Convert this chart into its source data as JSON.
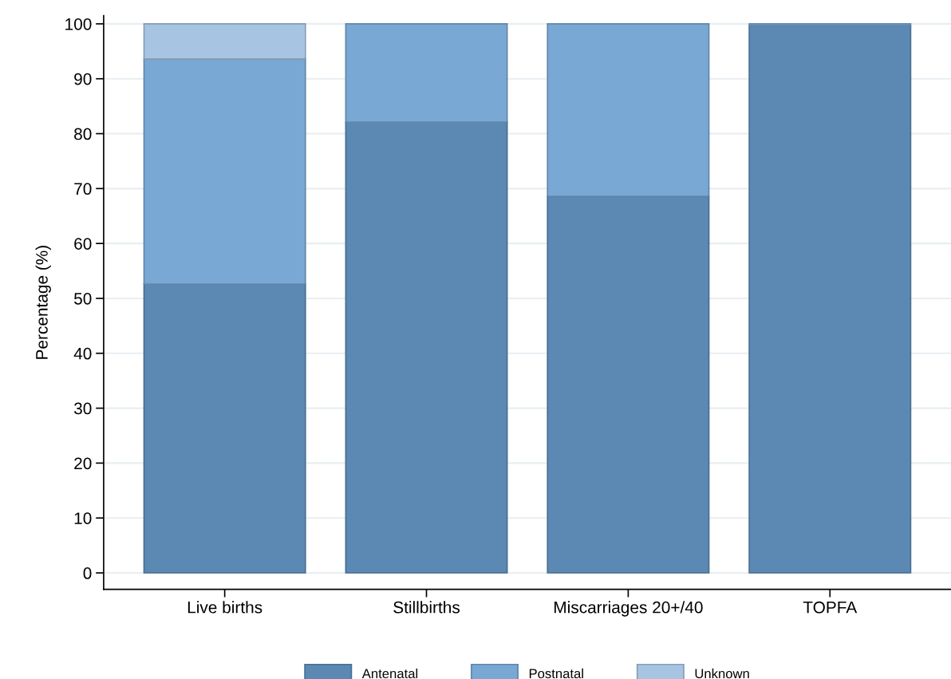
{
  "chart_data": {
    "type": "bar",
    "stacked": true,
    "ylabel": "Percentage (%)",
    "categories": [
      "Live births",
      "Stillbirths",
      "Miscarriages 20+/40",
      "TOPFA"
    ],
    "series": [
      {
        "name": "Antenatal",
        "color": "#5b89b4",
        "values": [
          52.6,
          82.1,
          68.6,
          99.7
        ]
      },
      {
        "name": "Postnatal",
        "color": "#79a8d4",
        "values": [
          41.0,
          17.9,
          31.4,
          0.3
        ]
      },
      {
        "name": "Unknown",
        "color": "#a7c5e2",
        "values": [
          6.4,
          0,
          0,
          0
        ]
      }
    ],
    "ylim": [
      -3,
      101.5
    ],
    "yticks": [
      0,
      10,
      20,
      30,
      40,
      50,
      60,
      70,
      80,
      90,
      100
    ],
    "grid": "y",
    "legend": "bottom"
  }
}
